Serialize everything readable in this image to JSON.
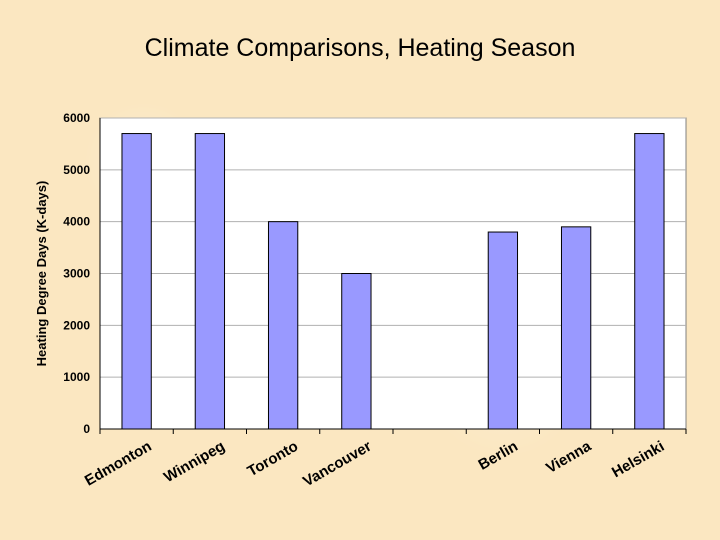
{
  "slide": {
    "title": "Climate Comparisons, Heating Season"
  },
  "chart_data": {
    "type": "bar",
    "title": "Climate Comparisons, Heating Season",
    "xlabel": "",
    "ylabel": "Heating Degree Days (K-days)",
    "ylim": [
      0,
      6000
    ],
    "yticks": [
      0,
      1000,
      2000,
      3000,
      4000,
      5000,
      6000
    ],
    "grid": true,
    "legend": "none",
    "categories": [
      "Edmonton",
      "Winnipeg",
      "Toronto",
      "Vancouver",
      "",
      "Berlin",
      "Vienna",
      "Helsinki"
    ],
    "values": [
      5700,
      5700,
      4000,
      3000,
      null,
      3800,
      3900,
      5700
    ],
    "colors": {
      "bar": "#9999ff",
      "bar_edge": "#000000",
      "plot_bg": "#ffffff",
      "grid": "#b0b0b0"
    }
  }
}
